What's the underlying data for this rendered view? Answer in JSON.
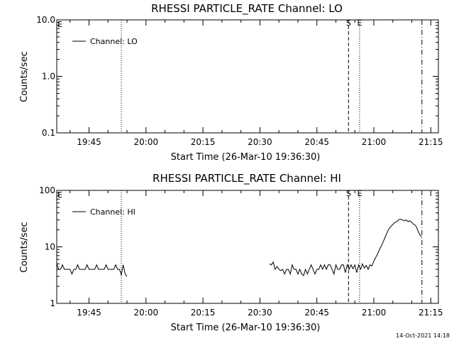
{
  "footer_timestamp": "14-Oct-2021 14:18",
  "chart_data": [
    {
      "type": "line",
      "title": "RHESSI PARTICLE_RATE Channel: LO",
      "xlabel": "Start Time (26-Mar-10 19:36:30)",
      "ylabel": "Counts/sec",
      "yscale": "log",
      "ylim": [
        0.1,
        10.0
      ],
      "xlim": [
        "19:36:30",
        "21:17:00"
      ],
      "yticks": [
        {
          "value": 0.1,
          "label": "0.1"
        },
        {
          "value": 1.0,
          "label": "1.0"
        },
        {
          "value": 10.0,
          "label": "10.0"
        }
      ],
      "xticks": [
        {
          "time": "19:45",
          "label": "19:45"
        },
        {
          "time": "20:00",
          "label": "20:00"
        },
        {
          "time": "20:15",
          "label": "20:15"
        },
        {
          "time": "20:30",
          "label": "20:30"
        },
        {
          "time": "20:45",
          "label": "20:45"
        },
        {
          "time": "21:00",
          "label": "21:00"
        },
        {
          "time": "21:15",
          "label": "21:15"
        }
      ],
      "corner_label": "E",
      "legend_position": "top-left",
      "series": [
        {
          "name": "Channel: LO",
          "x": [],
          "y": []
        }
      ],
      "markers": [
        {
          "time": "19:53:30",
          "style": "dotted",
          "label": ""
        },
        {
          "time": "20:53:20",
          "style": "dashed",
          "label": "S"
        },
        {
          "time": "20:56:15",
          "style": "dotted",
          "label": "E"
        },
        {
          "time": "21:12:40",
          "style": "dashdot",
          "label": ""
        }
      ]
    },
    {
      "type": "line",
      "title": "RHESSI PARTICLE_RATE Channel: HI",
      "xlabel": "Start Time (26-Mar-10 19:36:30)",
      "ylabel": "Counts/sec",
      "yscale": "log",
      "ylim": [
        1,
        100
      ],
      "xlim": [
        "19:36:30",
        "21:17:00"
      ],
      "yticks": [
        {
          "value": 1,
          "label": "1"
        },
        {
          "value": 10,
          "label": "10"
        },
        {
          "value": 100,
          "label": "100"
        }
      ],
      "xticks": [
        {
          "time": "19:45",
          "label": "19:45"
        },
        {
          "time": "20:00",
          "label": "20:00"
        },
        {
          "time": "20:15",
          "label": "20:15"
        },
        {
          "time": "20:30",
          "label": "20:30"
        },
        {
          "time": "20:45",
          "label": "20:45"
        },
        {
          "time": "21:00",
          "label": "21:00"
        },
        {
          "time": "21:15",
          "label": "21:15"
        }
      ],
      "corner_label": "E",
      "legend_position": "top-left",
      "series": [
        {
          "name": "Channel: HI",
          "segments": [
            {
              "x": [
                "19:36:30",
                "19:37:00",
                "19:37:30",
                "19:38:00",
                "19:38:30",
                "19:39:00",
                "19:39:30",
                "19:40:00",
                "19:40:30",
                "19:41:00",
                "19:41:30",
                "19:42:00",
                "19:42:30",
                "19:43:00",
                "19:43:30",
                "19:44:00",
                "19:44:30",
                "19:45:00",
                "19:45:30",
                "19:46:00",
                "19:46:30",
                "19:47:00",
                "19:47:30",
                "19:48:00",
                "19:48:30",
                "19:49:00",
                "19:49:30",
                "19:50:00",
                "19:50:30",
                "19:51:00",
                "19:51:30",
                "19:52:00",
                "19:52:30",
                "19:53:00",
                "19:53:30",
                "19:54:00",
                "19:54:30",
                "19:55:00"
              ],
              "y": [
                5,
                4,
                4,
                4.8,
                4,
                4,
                4,
                4,
                3.3,
                4,
                4,
                4.8,
                4,
                4,
                4,
                4,
                4.8,
                4,
                4,
                4,
                4,
                4.8,
                4,
                4,
                4,
                4,
                4.8,
                4,
                4,
                4,
                4,
                4.8,
                4,
                4,
                3.2,
                4.8,
                3.3,
                3.0
              ]
            },
            {
              "x": [
                "20:32:30",
                "20:33:00",
                "20:33:30",
                "20:34:00",
                "20:34:30",
                "20:35:00",
                "20:35:30",
                "20:36:00",
                "20:36:30",
                "20:37:00",
                "20:37:30",
                "20:38:00",
                "20:38:30",
                "20:39:00",
                "20:39:30",
                "20:40:00",
                "20:40:30",
                "20:41:00",
                "20:41:30",
                "20:42:00",
                "20:42:30",
                "20:43:00",
                "20:43:30",
                "20:44:00",
                "20:44:30",
                "20:45:00",
                "20:45:30",
                "20:46:00",
                "20:46:30",
                "20:47:00",
                "20:47:30",
                "20:48:00",
                "20:48:30",
                "20:49:00",
                "20:49:30",
                "20:50:00",
                "20:50:30",
                "20:51:00",
                "20:51:30",
                "20:52:00",
                "20:52:30",
                "20:53:00",
                "20:53:30",
                "20:54:00",
                "20:54:30",
                "20:55:00",
                "20:55:30",
                "20:56:00",
                "20:56:30",
                "20:57:00",
                "20:57:30",
                "20:58:00",
                "20:58:30",
                "20:59:00",
                "20:59:30",
                "21:00:00",
                "21:00:30",
                "21:01:00",
                "21:01:30",
                "21:02:00",
                "21:02:30",
                "21:03:00",
                "21:03:30",
                "21:04:00",
                "21:04:30",
                "21:05:00",
                "21:05:30",
                "21:06:00",
                "21:06:30",
                "21:07:00",
                "21:07:30",
                "21:08:00",
                "21:08:30",
                "21:09:00",
                "21:09:30",
                "21:10:00",
                "21:10:30",
                "21:11:00",
                "21:11:30",
                "21:12:00",
                "21:12:30"
              ],
              "y": [
                5,
                4.8,
                5.4,
                4,
                4.5,
                4,
                3.8,
                4,
                3.3,
                4,
                4,
                3.3,
                4.8,
                4,
                4,
                3.3,
                4,
                3.3,
                3.1,
                4,
                3.3,
                4,
                4.8,
                4,
                3.3,
                4,
                4,
                4.8,
                4,
                4.8,
                4,
                4.8,
                4.8,
                4,
                3.3,
                4.8,
                4,
                4,
                4.8,
                4.8,
                3.5,
                4.8,
                4,
                4.8,
                4.1,
                4.8,
                3.5,
                4.8,
                4,
                5.0,
                4.2,
                4.7,
                4.0,
                4.8,
                4.6,
                5.6,
                6.5,
                7.5,
                9.0,
                10.5,
                12.5,
                15,
                18,
                21,
                23,
                25,
                27,
                28,
                30,
                31,
                30,
                29,
                30,
                28,
                29,
                27,
                25,
                24,
                20,
                17,
                15
              ]
            }
          ]
        }
      ],
      "markers": [
        {
          "time": "19:53:30",
          "style": "dotted",
          "label": ""
        },
        {
          "time": "20:53:20",
          "style": "dashed",
          "label": "S"
        },
        {
          "time": "20:56:15",
          "style": "dotted",
          "label": "E"
        },
        {
          "time": "21:12:40",
          "style": "dashdot",
          "label": ""
        }
      ]
    }
  ]
}
